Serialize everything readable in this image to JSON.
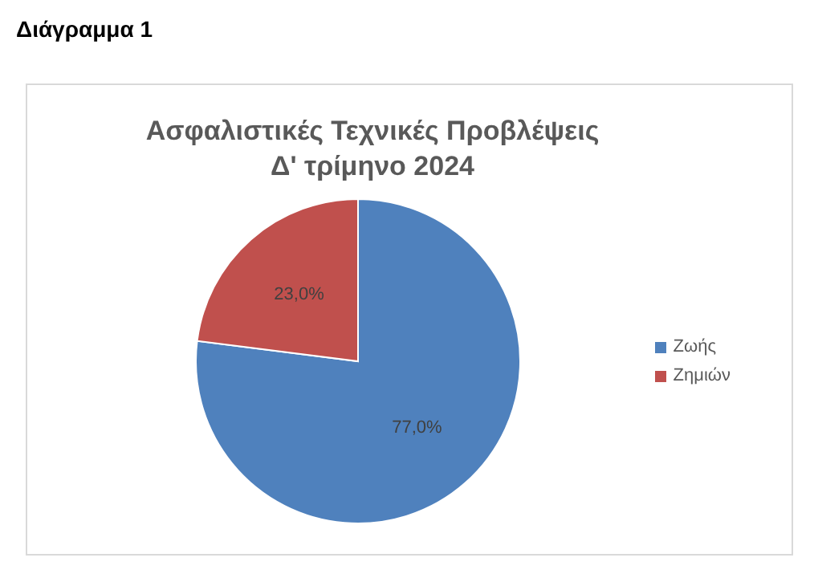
{
  "chart_data": {
    "type": "pie",
    "title": "Ασφαλιστικές Τεχνικές Προβλέψεις",
    "subtitle": "Δ' τρίμηνο 2024",
    "annotations": [
      "Διάγραμμα 1"
    ],
    "categories": [
      "Ζωής",
      "Ζημιών"
    ],
    "values": [
      77.0,
      23.0
    ],
    "colors": [
      "#4f81bd",
      "#c0504d"
    ],
    "value_labels": [
      "77,0%",
      "23,0%"
    ],
    "legend": "right"
  }
}
